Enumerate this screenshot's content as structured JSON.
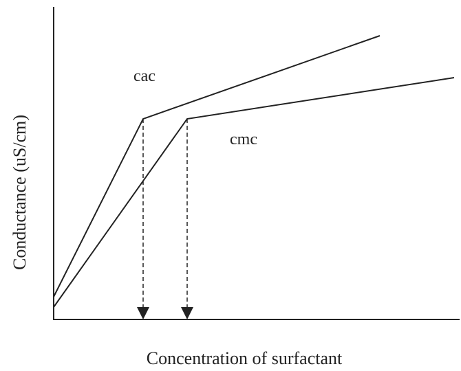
{
  "chart_data": {
    "type": "line",
    "xlabel": "Concentration of surfactant",
    "ylabel": "Conductance (uS/cm)",
    "xlim": [
      0,
      590
    ],
    "ylim": [
      0,
      455
    ],
    "series": [
      {
        "color": "#222222",
        "x": [
          0,
          130,
          474
        ],
        "values": [
          33,
          292,
          413
        ]
      },
      {
        "color": "#222222",
        "x": [
          0,
          194,
          582
        ],
        "values": [
          18,
          292,
          352
        ]
      }
    ],
    "annotations": [
      {
        "text": "cac",
        "series": 0
      },
      {
        "text": "cmc",
        "series": 1
      }
    ]
  }
}
